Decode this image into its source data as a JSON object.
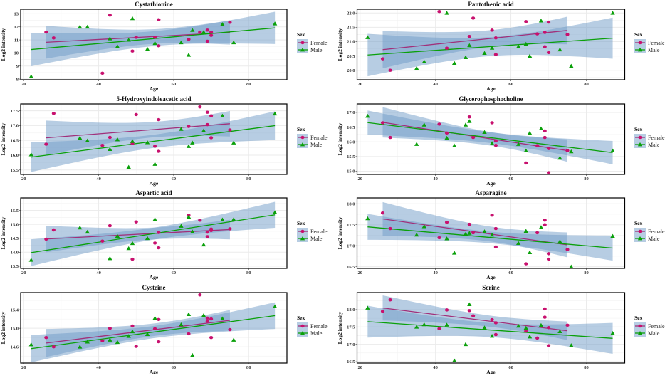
{
  "legend": {
    "title": "Sex",
    "items": [
      "Female",
      "Male"
    ]
  },
  "colors": {
    "female": "#c8106e",
    "female_line": "#a0307a",
    "male": "#0aa00a",
    "band": "#6f9cc8",
    "grid": "#ebebeb"
  },
  "chart_data": [
    {
      "type": "scatter",
      "title": "Cystathionine",
      "xlabel": "Age",
      "ylabel": "Log2 intensity",
      "xlim": [
        19.2,
        90.2
      ],
      "ylim": [
        7.95,
        13.35
      ],
      "xticks": [
        20,
        40,
        60,
        80
      ],
      "yticks": [
        8,
        9,
        10,
        11,
        12,
        13
      ],
      "ytick_labels": [
        "8",
        "9",
        "10",
        "11",
        "12",
        "13"
      ],
      "trend": "linear fit with 95% CI per Sex",
      "legend_position": "right",
      "series": [
        {
          "name": "Female",
          "x": [
            26,
            28,
            41,
            43,
            49,
            50,
            55,
            56,
            56,
            64,
            67,
            69,
            69,
            70,
            70,
            75
          ],
          "y": [
            11.6,
            11.15,
            8.45,
            12.9,
            10.15,
            11.2,
            11.2,
            12.55,
            10.55,
            11.05,
            11.6,
            11.75,
            10.9,
            11.6,
            11.35,
            12.35
          ]
        },
        {
          "name": "Male",
          "x": [
            22,
            35,
            37,
            43,
            45,
            48,
            49,
            53,
            55,
            62,
            64,
            65,
            68,
            73,
            76,
            87
          ],
          "y": [
            8.2,
            12.0,
            12.0,
            11.1,
            10.5,
            11.0,
            12.65,
            10.3,
            10.75,
            10.8,
            9.85,
            11.75,
            11.6,
            12.2,
            10.8,
            12.25
          ]
        }
      ]
    },
    {
      "type": "scatter",
      "title": "Pantothenic acid",
      "xlabel": "Age",
      "ylabel": "Log2 intensity",
      "xlim": [
        19.2,
        90.2
      ],
      "ylim": [
        19.67,
        22.13
      ],
      "xticks": [
        20,
        40,
        60,
        80
      ],
      "yticks": [
        20,
        20.5,
        21,
        21.5,
        22
      ],
      "ytick_labels": [
        "20.0",
        "20.5",
        "21.0",
        "21.5",
        "22.0"
      ],
      "trend": "linear fit with 95% CI per Sex",
      "legend_position": "right",
      "series": [
        {
          "name": "Female",
          "x": [
            26,
            28,
            41,
            43,
            49,
            50,
            55,
            56,
            56,
            64,
            67,
            69,
            69,
            70,
            70,
            75
          ],
          "y": [
            20.4,
            20.0,
            22.05,
            20.77,
            21.18,
            21.82,
            21.4,
            21.13,
            20.55,
            21.7,
            21.27,
            21.32,
            20.82,
            21.68,
            20.62,
            21.25
          ]
        },
        {
          "name": "Male",
          "x": [
            22,
            35,
            37,
            43,
            45,
            48,
            49,
            53,
            55,
            62,
            64,
            65,
            68,
            73,
            76,
            87
          ],
          "y": [
            21.15,
            20.07,
            20.3,
            22.0,
            20.25,
            20.45,
            20.87,
            20.6,
            20.78,
            20.83,
            20.92,
            20.5,
            21.73,
            20.72,
            20.15,
            22.0
          ]
        }
      ]
    },
    {
      "type": "scatter",
      "title": "5-Hydroxyindoleacetic acid",
      "xlabel": "Age",
      "ylabel": "Log2 intensity",
      "xlim": [
        19.2,
        90.2
      ],
      "ylim": [
        15.35,
        17.73
      ],
      "xticks": [
        20,
        40,
        60,
        80
      ],
      "yticks": [
        15.5,
        16,
        16.5,
        17,
        17.5
      ],
      "ytick_labels": [
        "15.5",
        "16.0",
        "16.5",
        "17.0",
        "17.5"
      ],
      "trend": "linear fit with 95% CI per Sex",
      "legend_position": "right",
      "series": [
        {
          "name": "Female",
          "x": [
            26,
            28,
            41,
            43,
            49,
            50,
            55,
            56,
            56,
            64,
            67,
            69,
            69,
            70,
            70,
            75
          ],
          "y": [
            16.37,
            17.41,
            16.33,
            16.6,
            16.39,
            17.37,
            16.3,
            17.2,
            16.13,
            16.97,
            17.63,
            17.45,
            17.03,
            17.33,
            16.59,
            16.85
          ]
        },
        {
          "name": "Male",
          "x": [
            22,
            35,
            37,
            43,
            45,
            48,
            49,
            53,
            55,
            62,
            64,
            65,
            68,
            73,
            76,
            87
          ],
          "y": [
            16.02,
            16.58,
            16.49,
            16.2,
            16.53,
            15.6,
            16.47,
            16.43,
            15.7,
            16.88,
            16.3,
            16.42,
            16.83,
            17.33,
            16.42,
            17.4
          ]
        }
      ]
    },
    {
      "type": "scatter",
      "title": "Glycerophosphocholine",
      "xlabel": "Age",
      "ylabel": "Log2 intensity",
      "xlim": [
        19.2,
        90.2
      ],
      "ylim": [
        14.89,
        17.29
      ],
      "xticks": [
        20,
        40,
        60,
        80
      ],
      "yticks": [
        15,
        15.5,
        16,
        16.5,
        17
      ],
      "ytick_labels": [
        "15.0",
        "15.5",
        "16.0",
        "16.5",
        "17.0"
      ],
      "trend": "linear fit with 95% CI per Sex",
      "legend_position": "right",
      "series": [
        {
          "name": "Female",
          "x": [
            26,
            28,
            41,
            43,
            49,
            50,
            55,
            56,
            56,
            64,
            67,
            69,
            69,
            70,
            70,
            75
          ],
          "y": [
            16.65,
            16.15,
            16.6,
            16.3,
            16.85,
            16.15,
            16.65,
            16.03,
            15.88,
            15.28,
            15.87,
            16.37,
            16.15,
            15.77,
            14.95,
            15.7
          ]
        },
        {
          "name": "Male",
          "x": [
            22,
            35,
            37,
            43,
            45,
            48,
            49,
            53,
            55,
            62,
            64,
            65,
            68,
            73,
            76,
            87
          ],
          "y": [
            16.88,
            15.92,
            16.58,
            16.13,
            15.87,
            16.58,
            16.7,
            16.33,
            15.95,
            15.92,
            15.7,
            16.3,
            16.45,
            15.45,
            15.67,
            15.7
          ]
        }
      ]
    },
    {
      "type": "scatter",
      "title": "Aspartic acid",
      "xlabel": "Age",
      "ylabel": "Log2 intensity",
      "xlim": [
        19.2,
        90.2
      ],
      "ylim": [
        13.42,
        15.95
      ],
      "xticks": [
        20,
        40,
        60,
        80
      ],
      "yticks": [
        13.5,
        14,
        14.5,
        15,
        15.5
      ],
      "ytick_labels": [
        "13.5",
        "14.0",
        "14.5",
        "15.0",
        "15.5"
      ],
      "trend": "linear fit with 95% CI per Sex",
      "legend_position": "right",
      "series": [
        {
          "name": "Female",
          "x": [
            26,
            28,
            41,
            43,
            49,
            50,
            55,
            56,
            56,
            64,
            67,
            69,
            69,
            70,
            70,
            75
          ],
          "y": [
            14.47,
            14.8,
            14.4,
            14.95,
            13.75,
            15.09,
            14.33,
            14.71,
            14.16,
            15.33,
            15.15,
            14.72,
            14.56,
            14.83,
            14.78,
            14.84
          ]
        },
        {
          "name": "Male",
          "x": [
            22,
            35,
            37,
            43,
            45,
            48,
            49,
            53,
            55,
            62,
            64,
            65,
            68,
            73,
            76,
            87
          ],
          "y": [
            13.72,
            14.88,
            14.73,
            13.78,
            14.58,
            14.14,
            14.32,
            14.5,
            15.18,
            14.94,
            15.27,
            14.74,
            14.27,
            15.17,
            15.18,
            15.43
          ]
        }
      ]
    },
    {
      "type": "scatter",
      "title": "Asparagine",
      "xlabel": "Age",
      "ylabel": "Log2 intensity",
      "xlim": [
        19.2,
        90.2
      ],
      "ylim": [
        16.46,
        18.14
      ],
      "xticks": [
        20,
        40,
        60,
        80
      ],
      "yticks": [
        16.5,
        17,
        17.5,
        18
      ],
      "ytick_labels": [
        "16.5",
        "17.0",
        "17.5",
        "18.0"
      ],
      "trend": "linear fit with 95% CI per Sex",
      "legend_position": "right",
      "series": [
        {
          "name": "Female",
          "x": [
            26,
            28,
            41,
            43,
            49,
            50,
            55,
            56,
            56,
            64,
            67,
            69,
            69,
            70,
            70,
            75
          ],
          "y": [
            17.78,
            17.41,
            17.19,
            17.56,
            17.51,
            17.31,
            17.73,
            17.41,
            16.97,
            16.57,
            17.31,
            17.61,
            17.5,
            16.81,
            16.68,
            16.91
          ]
        },
        {
          "name": "Male",
          "x": [
            22,
            35,
            37,
            43,
            45,
            48,
            49,
            53,
            55,
            62,
            64,
            65,
            68,
            73,
            76,
            87
          ],
          "y": [
            17.65,
            17.26,
            17.46,
            17.17,
            16.83,
            17.28,
            17.3,
            17.34,
            17.26,
            17.06,
            17.35,
            16.84,
            17.44,
            17.1,
            16.5,
            17.23
          ]
        }
      ]
    },
    {
      "type": "scatter",
      "title": "Cysteine",
      "xlabel": "Age",
      "ylabel": "Log2 intensity",
      "xlim": [
        19.2,
        90.2
      ],
      "ylim": [
        14.25,
        15.77
      ],
      "xticks": [
        20,
        40,
        60,
        80
      ],
      "yticks": [
        14.6,
        15.0,
        15.4
      ],
      "ytick_labels": [
        "14.6",
        "15.0",
        "15.4"
      ],
      "trend": "linear fit with 95% CI per Sex",
      "legend_position": "right",
      "series": [
        {
          "name": "Female",
          "x": [
            26,
            28,
            41,
            43,
            49,
            50,
            55,
            56,
            56,
            64,
            67,
            69,
            69,
            70,
            70,
            75
          ],
          "y": [
            14.8,
            14.6,
            14.73,
            15.0,
            15.05,
            14.61,
            14.99,
            15.19,
            14.71,
            14.88,
            15.72,
            15.22,
            15.15,
            15.2,
            14.8,
            14.97
          ]
        },
        {
          "name": "Male",
          "x": [
            22,
            35,
            37,
            43,
            45,
            48,
            49,
            53,
            55,
            62,
            64,
            65,
            68,
            73,
            76,
            87
          ],
          "y": [
            14.65,
            14.6,
            14.71,
            14.75,
            14.7,
            14.83,
            14.93,
            14.87,
            15.22,
            15.08,
            15.3,
            14.42,
            15.28,
            15.21,
            14.75,
            15.47
          ]
        }
      ]
    },
    {
      "type": "scatter",
      "title": "Serine",
      "xlabel": "Age",
      "ylabel": "Log2 intensity",
      "xlim": [
        19.2,
        90.2
      ],
      "ylim": [
        16.46,
        18.49
      ],
      "xticks": [
        20,
        40,
        60,
        80
      ],
      "yticks": [
        16.5,
        17,
        17.5,
        18
      ],
      "ytick_labels": [
        "16.5",
        "17.0",
        "17.5",
        "18.0"
      ],
      "trend": "linear fit with 95% CI per Sex",
      "legend_position": "right",
      "series": [
        {
          "name": "Female",
          "x": [
            26,
            28,
            41,
            43,
            49,
            50,
            55,
            56,
            56,
            64,
            67,
            69,
            69,
            70,
            70,
            75
          ],
          "y": [
            17.95,
            18.28,
            17.45,
            17.99,
            17.97,
            17.82,
            17.71,
            17.62,
            17.28,
            17.38,
            17.18,
            18.02,
            17.78,
            17.48,
            16.96,
            17.55
          ]
        },
        {
          "name": "Male",
          "x": [
            22,
            35,
            37,
            43,
            45,
            48,
            49,
            53,
            55,
            62,
            64,
            65,
            68,
            73,
            76,
            87
          ],
          "y": [
            18.05,
            17.5,
            17.57,
            17.56,
            16.53,
            17.0,
            18.15,
            17.48,
            17.24,
            17.53,
            17.47,
            17.22,
            17.55,
            17.37,
            16.97,
            17.32
          ]
        }
      ]
    }
  ]
}
